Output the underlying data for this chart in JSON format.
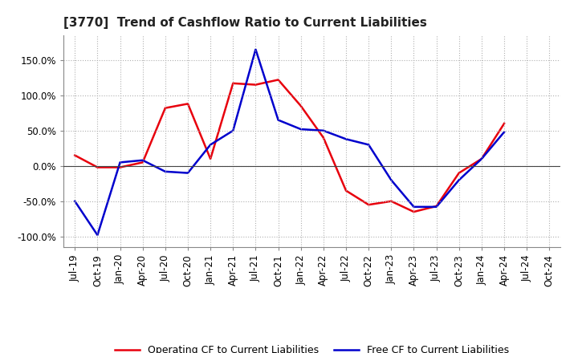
{
  "title": "[3770]  Trend of Cashflow Ratio to Current Liabilities",
  "ylim": [
    -115,
    185
  ],
  "yticks": [
    -100,
    -50,
    0,
    50,
    100,
    150
  ],
  "ytick_labels": [
    "-100.0%",
    "-50.0%",
    "0.0%",
    "50.0%",
    "100.0%",
    "150.0%"
  ],
  "x_labels": [
    "Jul-19",
    "Oct-19",
    "Jan-20",
    "Apr-20",
    "Jul-20",
    "Oct-20",
    "Jan-21",
    "Apr-21",
    "Jul-21",
    "Oct-21",
    "Jan-22",
    "Apr-22",
    "Jul-22",
    "Oct-22",
    "Jan-23",
    "Apr-23",
    "Jul-23",
    "Oct-23",
    "Jan-24",
    "Apr-24",
    "Jul-24",
    "Oct-24"
  ],
  "operating_cf": [
    15,
    -2,
    -2,
    5,
    82,
    88,
    10,
    117,
    115,
    122,
    85,
    40,
    -35,
    -55,
    -50,
    -65,
    -57,
    -10,
    10,
    60,
    null,
    null
  ],
  "free_cf": [
    -50,
    -98,
    5,
    8,
    -8,
    -10,
    30,
    50,
    165,
    65,
    52,
    50,
    38,
    30,
    -20,
    -58,
    -58,
    -20,
    10,
    48,
    null,
    null
  ],
  "operating_color": "#e8000d",
  "free_color": "#0000cd",
  "background_color": "#ffffff",
  "grid_color": "#b0b0b0",
  "legend_op_label": "Operating CF to Current Liabilities",
  "legend_free_label": "Free CF to Current Liabilities",
  "title_fontsize": 11,
  "tick_fontsize": 8.5,
  "legend_fontsize": 9
}
